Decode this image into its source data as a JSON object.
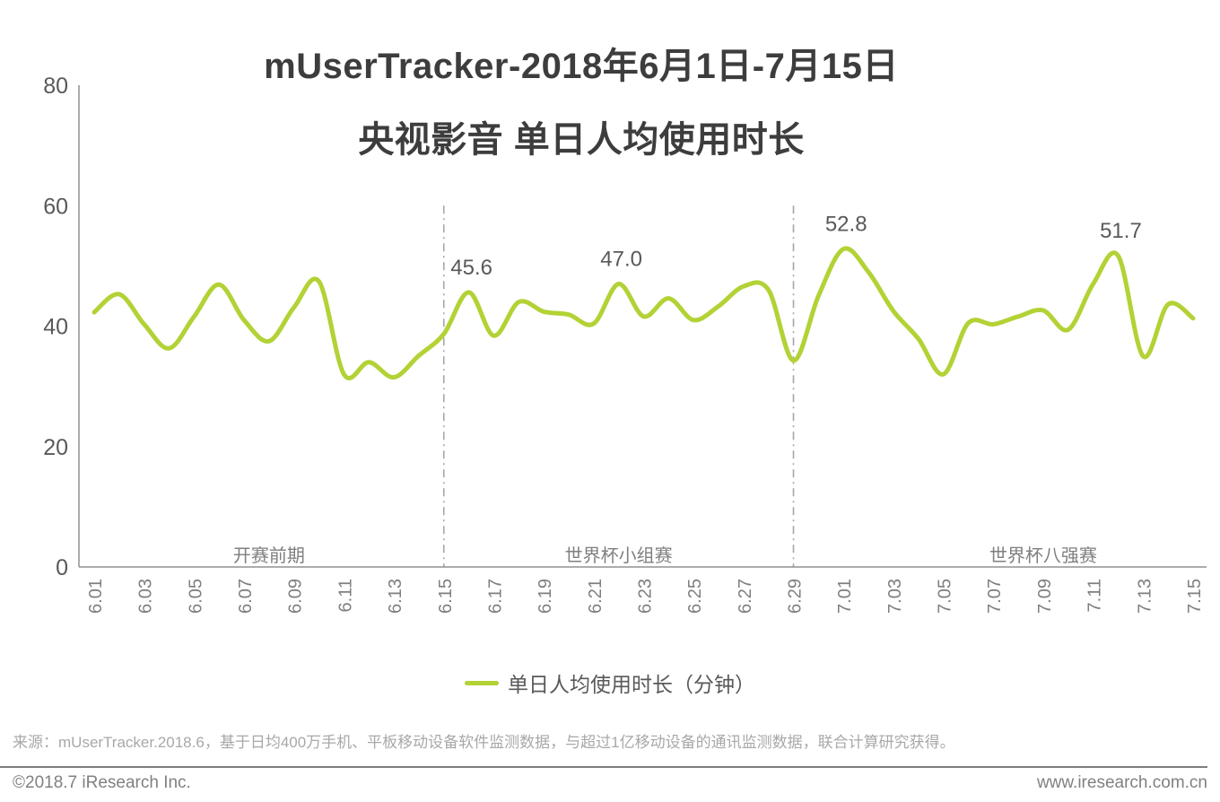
{
  "page": {
    "title_line1": "mUserTracker-2018年6月1日-7月15日",
    "title_line2": "央视影音 单日人均使用时长",
    "legend": {
      "label": "单日人均使用时长（分钟）",
      "swatch_color": "#b2d235"
    },
    "source_note": "来源：mUserTracker.2018.6，基于日均400万手机、平板移动设备软件监测数据，与超过1亿移动设备的通讯监测数据，联合计算研究获得。",
    "footer": {
      "copyright": "©2018.7 iResearch Inc.",
      "website": "www.iresearch.com.cn"
    }
  },
  "colors": {
    "line": "#b2d235",
    "axis": "#909090",
    "divider": "#a6a6a6",
    "tick_text": "#7f7f7f",
    "value_text": "#595959",
    "phase_text": "#7f7f7f"
  },
  "chart_data": {
    "type": "line",
    "title": "mUserTracker-2018年6月1日-7月15日 央视影音 单日人均使用时长",
    "xlabel": "",
    "ylabel": "",
    "ylim": [
      0,
      80
    ],
    "yticks": [
      0,
      20,
      40,
      60,
      80
    ],
    "grid": false,
    "legend_position": "bottom",
    "x": [
      "6.01",
      "6.02",
      "6.03",
      "6.04",
      "6.05",
      "6.06",
      "6.07",
      "6.08",
      "6.09",
      "6.10",
      "6.11",
      "6.12",
      "6.13",
      "6.14",
      "6.15",
      "6.16",
      "6.17",
      "6.18",
      "6.19",
      "6.20",
      "6.21",
      "6.22",
      "6.23",
      "6.24",
      "6.25",
      "6.26",
      "6.27",
      "6.28",
      "6.29",
      "6.30",
      "7.01",
      "7.02",
      "7.03",
      "7.04",
      "7.05",
      "7.06",
      "7.07",
      "7.08",
      "7.09",
      "7.10",
      "7.11",
      "7.12",
      "7.13",
      "7.14",
      "7.15"
    ],
    "x_tick_labels": [
      "6.01",
      "6.03",
      "6.05",
      "6.07",
      "6.09",
      "6.11",
      "6.13",
      "6.15",
      "6.17",
      "6.19",
      "6.21",
      "6.23",
      "6.25",
      "6.27",
      "6.29",
      "7.01",
      "7.03",
      "7.05",
      "7.07",
      "7.09",
      "7.11",
      "7.13",
      "7.15"
    ],
    "series": [
      {
        "name": "单日人均使用时长（分钟）",
        "values": [
          42.3,
          45.3,
          40.3,
          36.3,
          41.6,
          46.9,
          41.0,
          37.5,
          43.1,
          47.4,
          32.0,
          34.0,
          31.5,
          35.1,
          38.7,
          45.6,
          38.4,
          44.0,
          42.4,
          41.9,
          40.4,
          47.0,
          41.6,
          44.6,
          41.0,
          43.3,
          46.6,
          46.0,
          34.3,
          45.0,
          52.8,
          49.0,
          42.5,
          37.9,
          32.0,
          40.5,
          40.3,
          41.6,
          42.6,
          39.4,
          47.0,
          51.7,
          35.0,
          43.6,
          41.3
        ]
      }
    ],
    "annotations": [
      {
        "x": "6.16",
        "value": 45.6
      },
      {
        "x": "6.22",
        "value": 47.0
      },
      {
        "x": "7.01",
        "value": 52.8
      },
      {
        "x": "7.12",
        "value": 51.7
      }
    ],
    "dividers": [
      "6.15",
      "6.29"
    ],
    "phases": [
      {
        "label": "开赛前期",
        "from": "6.01",
        "to": "6.15",
        "anchor": "6.08"
      },
      {
        "label": "世界杯小组赛",
        "from": "6.15",
        "to": "6.29",
        "anchor": "6.22"
      },
      {
        "label": "世界杯八强赛",
        "from": "6.29",
        "to": "7.15",
        "anchor": "7.09"
      }
    ]
  }
}
